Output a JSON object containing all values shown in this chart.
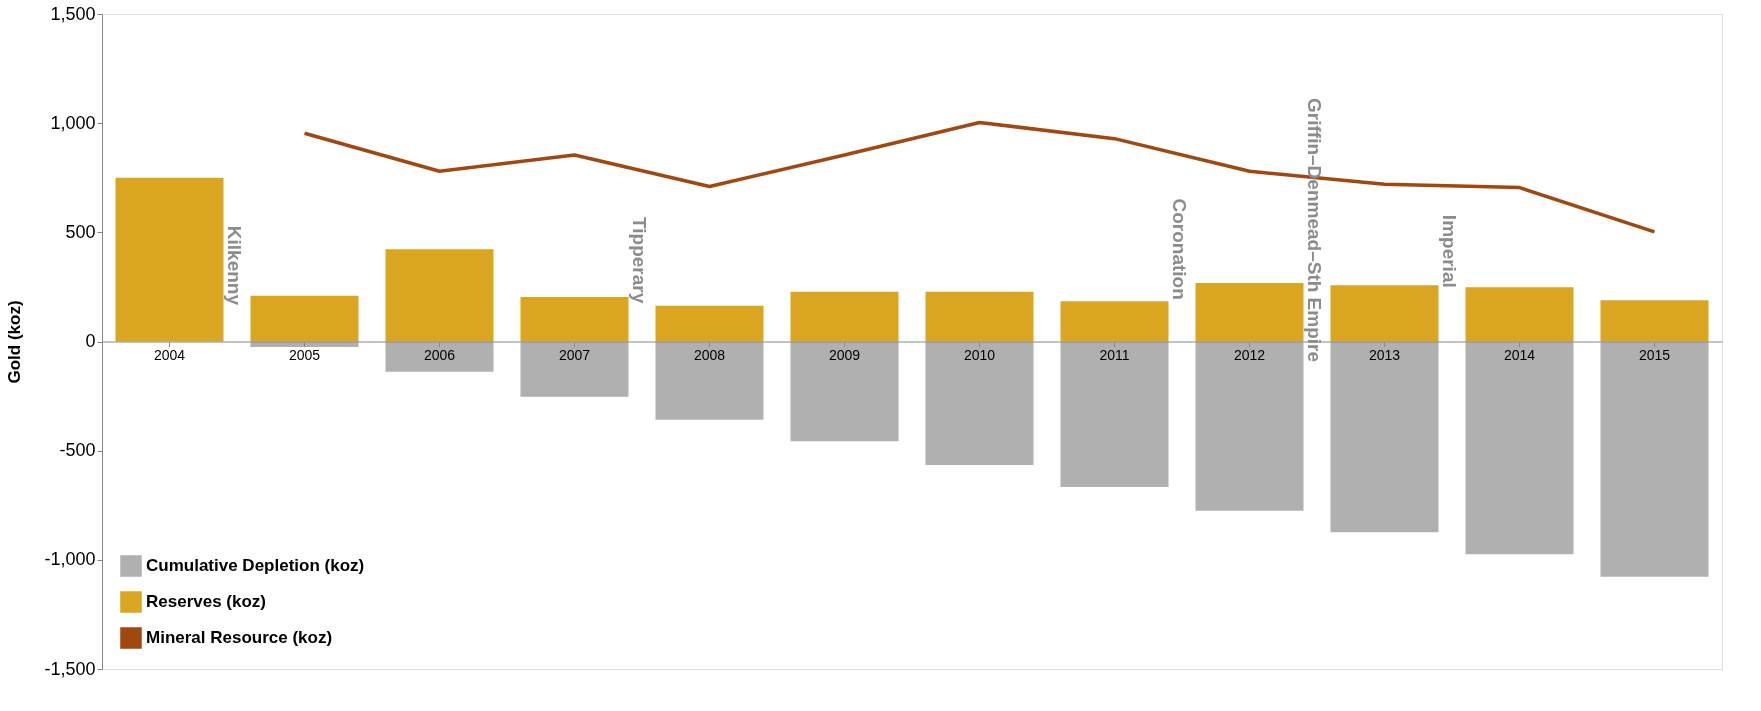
{
  "chart_data": {
    "type": "bar",
    "ylabel": "Gold (koz)",
    "categories": [
      "2004",
      "2005",
      "2006",
      "2007",
      "2008",
      "2009",
      "2010",
      "2011",
      "2012",
      "2013",
      "2014",
      "2015"
    ],
    "series": [
      {
        "name": "Cumulative Depletion (koz)",
        "color": "#b0b0b0",
        "values": [
          null,
          -25,
          -139,
          -253,
          -358,
          -457,
          -566,
          -666,
          -775,
          -874,
          -974,
          -1078
        ]
      },
      {
        "name": "Reserves (koz)",
        "color": "#daa520",
        "values": [
          750,
          210,
          422,
          204,
          164,
          228,
          228,
          184,
          268,
          258,
          248,
          189
        ]
      },
      {
        "name": "Mineral Resource (koz)",
        "type": "line",
        "color": "#a0480f",
        "values": [
          null,
          954,
          780,
          854,
          710,
          854,
          1003,
          929,
          780,
          720,
          705,
          502
        ]
      }
    ],
    "annotations": [
      "Kilkenny",
      "Tipperary",
      "Coronation",
      "Griffin–Denmead–Sth Empire",
      "Imperial"
    ],
    "stacked": true,
    "ylim": [
      -1500,
      1500
    ],
    "yticks": [
      {
        "value": -1500,
        "label": "-1,500"
      },
      {
        "value": -1000,
        "label": "-1,000"
      },
      -500,
      0,
      500,
      {
        "value": 1000,
        "label": "1,000"
      },
      {
        "value": 1500,
        "label": "1,500"
      }
    ],
    "legend": "bottom left",
    "grid": false
  }
}
